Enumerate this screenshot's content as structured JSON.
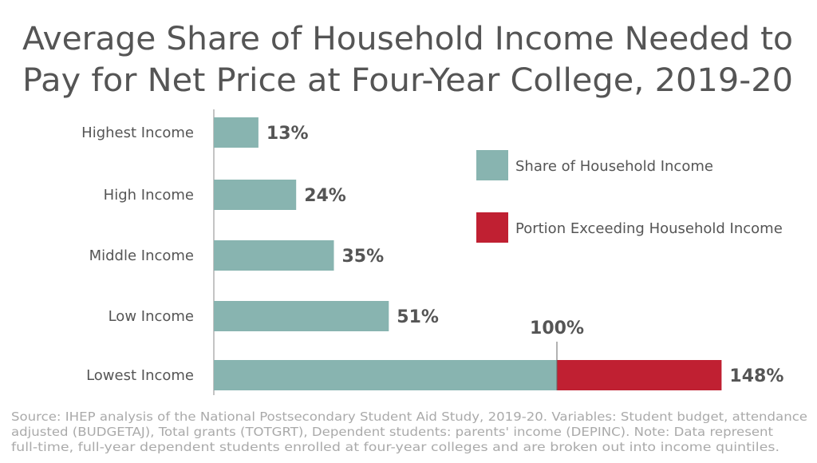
{
  "chart_data": {
    "type": "bar",
    "orientation": "horizontal",
    "stacked": true,
    "title_lines": [
      "Average Share of Household Income Needed to",
      "Pay for Net Price at Four-Year College, 2019-20"
    ],
    "categories": [
      "Highest Income",
      "High Income",
      "Middle Income",
      "Low Income",
      "Lowest Income"
    ],
    "series": [
      {
        "name": "Share of Household Income",
        "color": "#88b4b0",
        "values": [
          13,
          24,
          35,
          51,
          100
        ]
      },
      {
        "name": "Portion Exceeding Household Income",
        "color": "#c02032",
        "values": [
          0,
          0,
          0,
          0,
          48
        ]
      }
    ],
    "data_labels": [
      "13%",
      "24%",
      "35%",
      "51%",
      "148%"
    ],
    "reference_line": {
      "value": 100,
      "label": "100%"
    },
    "xlim": [
      0,
      150
    ],
    "grid": false,
    "legend_placement": "right"
  },
  "source_lines": [
    "Source: IHEP analysis of the National Postsecondary Student Aid Study, 2019-20. Variables: Student budget, attendance",
    "adjusted (BUDGETAJ), Total grants (TOTGRT), Dependent students: parents' income (DEPINC). Note: Data represent",
    "full-time, full-year dependent students enrolled at four-year colleges and are broken out into income quintiles."
  ]
}
